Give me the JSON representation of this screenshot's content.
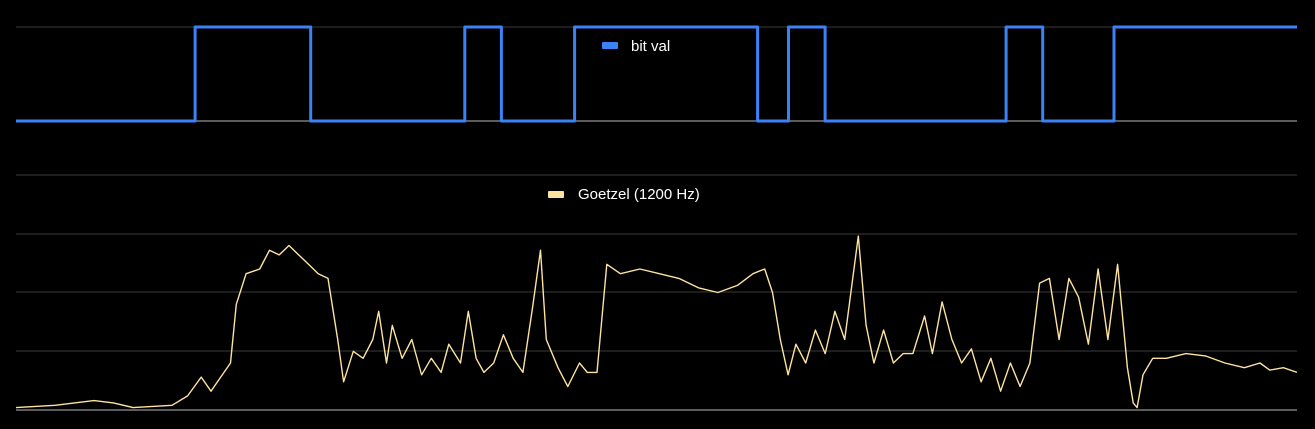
{
  "chart_data": [
    {
      "type": "line",
      "legend": "bit val",
      "legend_position": "top-center",
      "color": "#3b82f6",
      "grid": true,
      "ylim": [
        0,
        1
      ],
      "series": [
        {
          "name": "bit val",
          "points": [
            [
              0,
              0
            ],
            [
              93,
              0
            ],
            [
              93,
              1
            ],
            [
              153,
              1
            ],
            [
              153,
              0
            ],
            [
              233,
              0
            ],
            [
              233,
              1
            ],
            [
              252,
              1
            ],
            [
              252,
              0
            ],
            [
              290,
              0
            ],
            [
              290,
              1
            ],
            [
              385,
              1
            ],
            [
              385,
              0
            ],
            [
              401,
              0
            ],
            [
              401,
              1
            ],
            [
              420,
              1
            ],
            [
              420,
              0
            ],
            [
              514,
              0
            ],
            [
              514,
              1
            ],
            [
              533,
              1
            ],
            [
              533,
              0
            ],
            [
              570,
              0
            ],
            [
              570,
              1
            ],
            [
              665,
              1
            ]
          ]
        }
      ]
    },
    {
      "type": "line",
      "legend": "Goetzel (1200 Hz)",
      "legend_position": "top-center",
      "color": "#fde3a0",
      "grid": true,
      "ylim": [
        0,
        1
      ],
      "series": [
        {
          "name": "Goetzel (1200 Hz)",
          "points": [
            [
              0,
              0.01
            ],
            [
              20,
              0.02
            ],
            [
              40,
              0.04
            ],
            [
              50,
              0.03
            ],
            [
              60,
              0.01
            ],
            [
              80,
              0.02
            ],
            [
              88,
              0.06
            ],
            [
              95,
              0.14
            ],
            [
              100,
              0.08
            ],
            [
              105,
              0.14
            ],
            [
              110,
              0.2
            ],
            [
              113,
              0.45
            ],
            [
              118,
              0.58
            ],
            [
              125,
              0.6
            ],
            [
              130,
              0.68
            ],
            [
              135,
              0.66
            ],
            [
              140,
              0.7
            ],
            [
              145,
              0.66
            ],
            [
              150,
              0.62
            ],
            [
              155,
              0.58
            ],
            [
              160,
              0.56
            ],
            [
              165,
              0.3
            ],
            [
              168,
              0.12
            ],
            [
              173,
              0.25
            ],
            [
              178,
              0.22
            ],
            [
              183,
              0.3
            ],
            [
              186,
              0.42
            ],
            [
              190,
              0.2
            ],
            [
              193,
              0.36
            ],
            [
              198,
              0.22
            ],
            [
              203,
              0.3
            ],
            [
              208,
              0.15
            ],
            [
              213,
              0.22
            ],
            [
              218,
              0.16
            ],
            [
              222,
              0.28
            ],
            [
              228,
              0.2
            ],
            [
              232,
              0.42
            ],
            [
              236,
              0.22
            ],
            [
              240,
              0.16
            ],
            [
              245,
              0.2
            ],
            [
              250,
              0.32
            ],
            [
              255,
              0.22
            ],
            [
              260,
              0.16
            ],
            [
              265,
              0.44
            ],
            [
              269,
              0.68
            ],
            [
              272,
              0.3
            ],
            [
              278,
              0.18
            ],
            [
              283,
              0.1
            ],
            [
              289,
              0.2
            ],
            [
              293,
              0.16
            ],
            [
              298,
              0.16
            ],
            [
              303,
              0.62
            ],
            [
              310,
              0.58
            ],
            [
              320,
              0.6
            ],
            [
              330,
              0.58
            ],
            [
              340,
              0.56
            ],
            [
              350,
              0.52
            ],
            [
              360,
              0.5
            ],
            [
              370,
              0.53
            ],
            [
              378,
              0.58
            ],
            [
              384,
              0.6
            ],
            [
              388,
              0.5
            ],
            [
              392,
              0.3
            ],
            [
              396,
              0.15
            ],
            [
              400,
              0.28
            ],
            [
              405,
              0.2
            ],
            [
              410,
              0.34
            ],
            [
              415,
              0.24
            ],
            [
              420,
              0.42
            ],
            [
              425,
              0.3
            ],
            [
              432,
              0.74
            ],
            [
              436,
              0.36
            ],
            [
              440,
              0.2
            ],
            [
              445,
              0.34
            ],
            [
              450,
              0.2
            ],
            [
              455,
              0.24
            ],
            [
              460,
              0.24
            ],
            [
              466,
              0.4
            ],
            [
              470,
              0.24
            ],
            [
              475,
              0.46
            ],
            [
              480,
              0.3
            ],
            [
              485,
              0.2
            ],
            [
              490,
              0.26
            ],
            [
              495,
              0.12
            ],
            [
              500,
              0.22
            ],
            [
              505,
              0.08
            ],
            [
              510,
              0.2
            ],
            [
              515,
              0.1
            ],
            [
              520,
              0.2
            ],
            [
              525,
              0.54
            ],
            [
              530,
              0.56
            ],
            [
              535,
              0.3
            ],
            [
              540,
              0.56
            ],
            [
              545,
              0.48
            ],
            [
              550,
              0.28
            ],
            [
              555,
              0.6
            ],
            [
              560,
              0.3
            ],
            [
              565,
              0.62
            ],
            [
              570,
              0.18
            ],
            [
              573,
              0.03
            ],
            [
              575,
              0.01
            ],
            [
              578,
              0.15
            ],
            [
              583,
              0.22
            ],
            [
              590,
              0.22
            ],
            [
              600,
              0.24
            ],
            [
              610,
              0.23
            ],
            [
              620,
              0.2
            ],
            [
              630,
              0.18
            ],
            [
              638,
              0.2
            ],
            [
              643,
              0.17
            ],
            [
              650,
              0.18
            ],
            [
              657,
              0.16
            ]
          ]
        }
      ]
    }
  ]
}
